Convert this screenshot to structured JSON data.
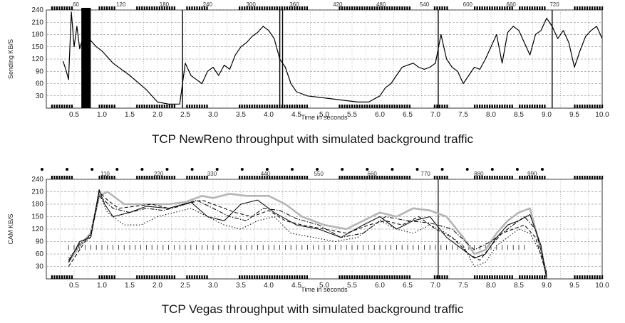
{
  "chart_data": [
    {
      "type": "line",
      "title": "",
      "caption": "TCP NewReno throughput with simulated background traffic",
      "xlabel": "Time in seconds",
      "ylabel": "Sending KB/S",
      "xlim": [
        0,
        10
      ],
      "ylim": [
        0,
        240
      ],
      "x_ticks": [
        "0.5",
        "1.0",
        "1.5",
        "2.0",
        "2.5",
        "3.0",
        "3.5",
        "4.0",
        "4.5",
        "5.0",
        "5.5",
        "6.0",
        "6.5",
        "7.0",
        "7.5",
        "8.0",
        "8.5",
        "9.0",
        "9.5",
        "10.0"
      ],
      "y_ticks": [
        "30",
        "60",
        "90",
        "120",
        "150",
        "180",
        "210",
        "240"
      ],
      "top_markers": [
        "60",
        "120",
        "180",
        "240",
        "300",
        "360",
        "420",
        "480",
        "540",
        "600",
        "660",
        "720"
      ],
      "grid": true,
      "series": [
        {
          "x": [
            0.3,
            0.35,
            0.4,
            0.45,
            0.5,
            0.55,
            0.6,
            0.7,
            0.8,
            0.9,
            1.0,
            1.2,
            1.5,
            1.8,
            2.0,
            2.2,
            2.3,
            2.4,
            2.45,
            2.5,
            2.55,
            2.6,
            2.7,
            2.8,
            2.9,
            3.0,
            3.1,
            3.2,
            3.3,
            3.4,
            3.5,
            3.6,
            3.7,
            3.8,
            3.9,
            4.0,
            4.1,
            4.2,
            4.25,
            4.3,
            4.4,
            4.5,
            4.7,
            5.0,
            5.3,
            5.6,
            5.8,
            6.0,
            6.1,
            6.2,
            6.3,
            6.4,
            6.5,
            6.6,
            6.7,
            6.8,
            6.9,
            7.0,
            7.1,
            7.2,
            7.3,
            7.4,
            7.5,
            7.6,
            7.7,
            7.8,
            7.9,
            8.0,
            8.1,
            8.2,
            8.3,
            8.4,
            8.5,
            8.6,
            8.7,
            8.8,
            8.9,
            9.0,
            9.1,
            9.2,
            9.3,
            9.4,
            9.5,
            9.6,
            9.7,
            9.8,
            9.9,
            10.0
          ],
          "y": [
            115,
            95,
            70,
            235,
            150,
            200,
            145,
            190,
            165,
            150,
            140,
            110,
            80,
            45,
            15,
            10,
            10,
            10,
            60,
            110,
            95,
            80,
            70,
            60,
            90,
            100,
            80,
            105,
            95,
            130,
            150,
            160,
            175,
            185,
            200,
            190,
            170,
            120,
            110,
            100,
            60,
            40,
            30,
            25,
            20,
            15,
            15,
            30,
            50,
            60,
            80,
            100,
            105,
            110,
            100,
            95,
            100,
            110,
            180,
            120,
            100,
            90,
            60,
            80,
            100,
            95,
            120,
            150,
            180,
            110,
            185,
            200,
            190,
            160,
            130,
            180,
            190,
            220,
            200,
            170,
            190,
            160,
            100,
            140,
            175,
            190,
            200,
            170
          ]
        }
      ]
    },
    {
      "type": "line",
      "title": "",
      "caption": "TCP Vegas throughput with simulated background traffic",
      "xlabel": "Time in seconds",
      "ylabel": "CAM KB/S",
      "xlim": [
        0,
        10
      ],
      "ylim": [
        0,
        240
      ],
      "x_ticks": [
        "0.5",
        "1.0",
        "1.5",
        "2.0",
        "2.5",
        "3.0",
        "3.5",
        "4.0",
        "4.5",
        "5.0",
        "5.5",
        "6.0",
        "6.5",
        "7.0",
        "7.5",
        "8.0",
        "8.5",
        "9.0",
        "9.5",
        "10.0"
      ],
      "y_ticks": [
        "30",
        "60",
        "90",
        "120",
        "150",
        "180",
        "210",
        "240"
      ],
      "top_markers": [
        "110",
        "220",
        "330",
        "440",
        "550",
        "660",
        "770",
        "880",
        "990"
      ],
      "grid": true,
      "series": [
        {
          "style": "gray-thick",
          "x": [
            0.4,
            0.6,
            0.8,
            0.95,
            1.1,
            1.4,
            1.8,
            2.2,
            2.5,
            2.8,
            3.0,
            3.3,
            3.6,
            4.0,
            4.3,
            4.6,
            5.0,
            5.4,
            5.7,
            6.0,
            6.3,
            6.6,
            6.9,
            7.2,
            7.5,
            7.7,
            7.9,
            8.1,
            8.3,
            8.5,
            8.7,
            8.9,
            9.0
          ],
          "y": [
            40,
            80,
            110,
            200,
            210,
            180,
            180,
            180,
            185,
            200,
            195,
            205,
            200,
            200,
            180,
            150,
            130,
            120,
            140,
            160,
            150,
            170,
            165,
            150,
            100,
            60,
            70,
            110,
            140,
            160,
            170,
            70,
            5
          ]
        },
        {
          "style": "solid",
          "x": [
            0.4,
            0.6,
            0.8,
            0.95,
            1.05,
            1.2,
            1.5,
            1.8,
            2.2,
            2.6,
            2.9,
            3.2,
            3.5,
            3.8,
            4.1,
            4.5,
            4.9,
            5.3,
            5.7,
            6.0,
            6.3,
            6.6,
            6.9,
            7.2,
            7.5,
            7.7,
            7.9,
            8.1,
            8.3,
            8.5,
            8.7,
            8.9,
            9.0
          ],
          "y": [
            40,
            90,
            100,
            215,
            180,
            150,
            160,
            175,
            170,
            185,
            150,
            140,
            180,
            190,
            160,
            130,
            120,
            100,
            130,
            150,
            120,
            140,
            150,
            100,
            70,
            50,
            60,
            100,
            130,
            140,
            155,
            80,
            0
          ]
        },
        {
          "style": "dashed",
          "x": [
            0.4,
            0.6,
            0.8,
            0.95,
            1.1,
            1.3,
            1.6,
            1.9,
            2.2,
            2.5,
            2.8,
            3.1,
            3.4,
            3.7,
            4.0,
            4.3,
            4.6,
            5.0,
            5.4,
            5.8,
            6.1,
            6.4,
            6.7,
            7.0,
            7.3,
            7.6,
            7.8,
            8.0,
            8.2,
            8.4,
            8.6,
            8.8,
            9.0
          ],
          "y": [
            30,
            70,
            110,
            210,
            190,
            170,
            175,
            180,
            170,
            180,
            190,
            175,
            160,
            150,
            165,
            140,
            130,
            120,
            110,
            130,
            140,
            130,
            150,
            120,
            100,
            60,
            45,
            80,
            110,
            120,
            130,
            100,
            10
          ]
        },
        {
          "style": "dotted",
          "x": [
            0.4,
            0.6,
            0.8,
            0.95,
            1.1,
            1.4,
            1.7,
            2.0,
            2.3,
            2.6,
            2.9,
            3.2,
            3.5,
            3.8,
            4.1,
            4.4,
            4.8,
            5.2,
            5.6,
            6.0,
            6.3,
            6.6,
            6.9,
            7.2,
            7.5,
            7.7,
            7.9,
            8.1,
            8.3,
            8.5,
            8.7,
            8.9,
            9.0
          ],
          "y": [
            50,
            80,
            100,
            205,
            160,
            130,
            130,
            150,
            160,
            170,
            150,
            130,
            120,
            140,
            150,
            110,
            100,
            90,
            100,
            140,
            120,
            110,
            130,
            110,
            80,
            30,
            40,
            80,
            100,
            120,
            110,
            60,
            5
          ]
        },
        {
          "style": "dashdot",
          "x": [
            0.4,
            0.6,
            0.8,
            0.95,
            1.2,
            1.5,
            1.8,
            2.1,
            2.4,
            2.7,
            3.0,
            3.3,
            3.6,
            3.9,
            4.2,
            4.5,
            4.9,
            5.3,
            5.7,
            6.1,
            6.5,
            6.9,
            7.3,
            7.7,
            8.0,
            8.3,
            8.6,
            8.8,
            9.0
          ],
          "y": [
            45,
            85,
            105,
            200,
            170,
            160,
            170,
            165,
            175,
            190,
            170,
            150,
            140,
            170,
            165,
            145,
            130,
            100,
            110,
            150,
            140,
            135,
            120,
            70,
            90,
            120,
            150,
            120,
            15
          ]
        }
      ]
    }
  ]
}
